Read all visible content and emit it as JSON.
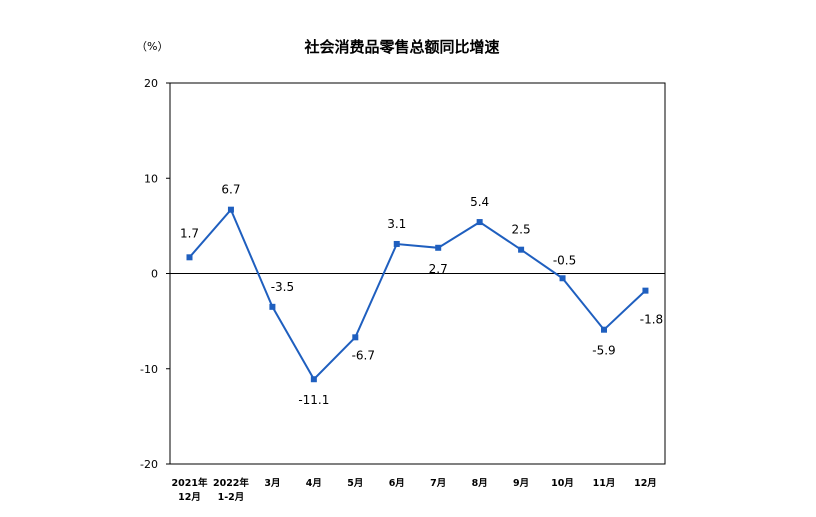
{
  "chart_data": {
    "type": "line",
    "title": "社会消费品零售总额同比增速",
    "unit_label": "（%）",
    "xlabel": "",
    "ylabel": "",
    "ylim": [
      -20,
      20
    ],
    "yticks": [
      "20",
      "10",
      "0",
      "-10",
      "-20"
    ],
    "ytick_values": [
      20,
      10,
      0,
      -10,
      -20
    ],
    "categories": [
      [
        "2021年",
        "12月"
      ],
      [
        "2022年",
        "1-2月"
      ],
      [
        "3月"
      ],
      [
        "4月"
      ],
      [
        "5月"
      ],
      [
        "6月"
      ],
      [
        "7月"
      ],
      [
        "8月"
      ],
      [
        "9月"
      ],
      [
        "10月"
      ],
      [
        "11月"
      ],
      [
        "12月"
      ]
    ],
    "series": [
      {
        "values": [
          1.7,
          6.7,
          -3.5,
          -11.1,
          -6.7,
          3.1,
          2.7,
          5.4,
          2.5,
          -0.5,
          -5.9,
          -1.8
        ],
        "labels": [
          "1.7",
          "6.7",
          "-3.5",
          "-11.1",
          "-6.7",
          "3.1",
          "2.7",
          "5.4",
          "2.5",
          "-0.5",
          "-5.9",
          "-1.8"
        ],
        "color": "#1F5FBF"
      }
    ],
    "grid": false,
    "legend": "none"
  }
}
